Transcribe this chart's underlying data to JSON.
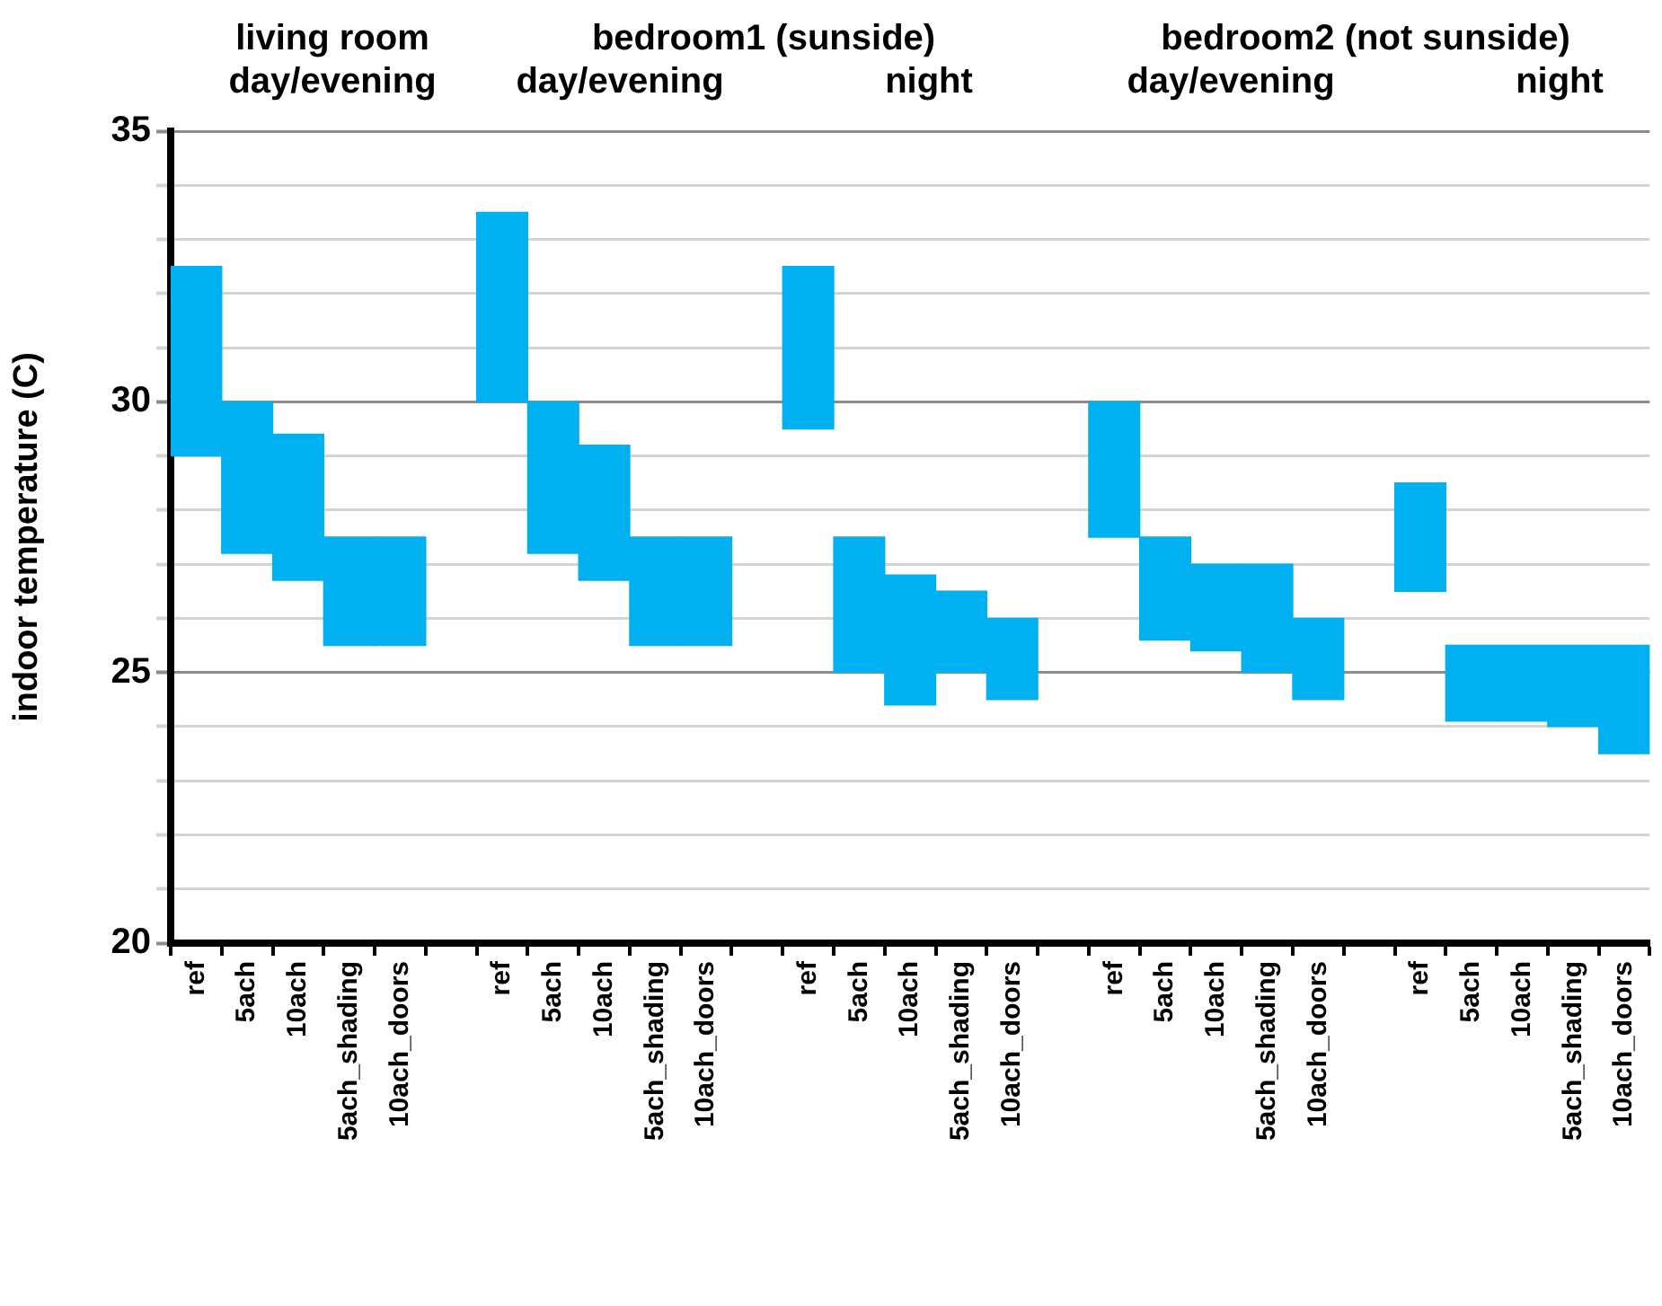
{
  "chart_data": {
    "type": "bar",
    "annotations": [
      "living room",
      "day/evening",
      "bedroom1 (sunside)",
      "day/evening",
      "night",
      "bedroom2 (not sunside)",
      "day/evening",
      "night"
    ],
    "ylabel": "indoor temperature (C)",
    "categories": [
      "ref",
      "5ach",
      "10ach",
      "5ach_shading",
      "10ach_doors",
      null,
      "ref",
      "5ach",
      "10ach",
      "5ach_shading",
      "10ach_doors",
      null,
      "ref",
      "5ach",
      "10ach",
      "5ach_shading",
      "10ach_doors",
      null,
      "ref",
      "5ach",
      "10ach",
      "5ach_shading",
      "10ach_doors",
      null,
      "ref",
      "5ach",
      "10ach",
      "5ach_shading",
      "10ach_doors"
    ],
    "base": [
      29,
      27.2,
      26.7,
      25.5,
      25.5,
      null,
      30,
      27.2,
      26.7,
      25.5,
      25.5,
      null,
      29.5,
      25,
      24.4,
      25,
      24.5,
      null,
      27.5,
      25.6,
      25.4,
      25,
      24.5,
      null,
      26.5,
      24.1,
      24.1,
      24,
      23.5
    ],
    "values": [
      3.5,
      2.8,
      2.7,
      2,
      2,
      null,
      3.5,
      2.8,
      2.5,
      2,
      2,
      null,
      3,
      2.5,
      2.4,
      1.5,
      1.5,
      null,
      2.5,
      1.9,
      1.6,
      2,
      1.5,
      null,
      2,
      1.4,
      1.4,
      1.5,
      2
    ],
    "color": "#00b0f0",
    "ylim": [
      20,
      35
    ],
    "yticks": [
      20,
      {
        "value": 21,
        "label": null
      },
      {
        "value": 22,
        "label": null
      },
      {
        "value": 23,
        "label": null
      },
      {
        "value": 24,
        "label": null
      },
      25,
      {
        "value": 26,
        "label": null
      },
      {
        "value": 27,
        "label": null
      },
      {
        "value": 28,
        "label": null
      },
      {
        "value": 29,
        "label": null
      },
      30,
      {
        "value": 31,
        "label": null
      },
      {
        "value": 32,
        "label": null
      },
      {
        "value": 33,
        "label": null
      },
      {
        "value": 34,
        "label": null
      },
      35
    ],
    "grid": "y",
    "legend": false
  }
}
